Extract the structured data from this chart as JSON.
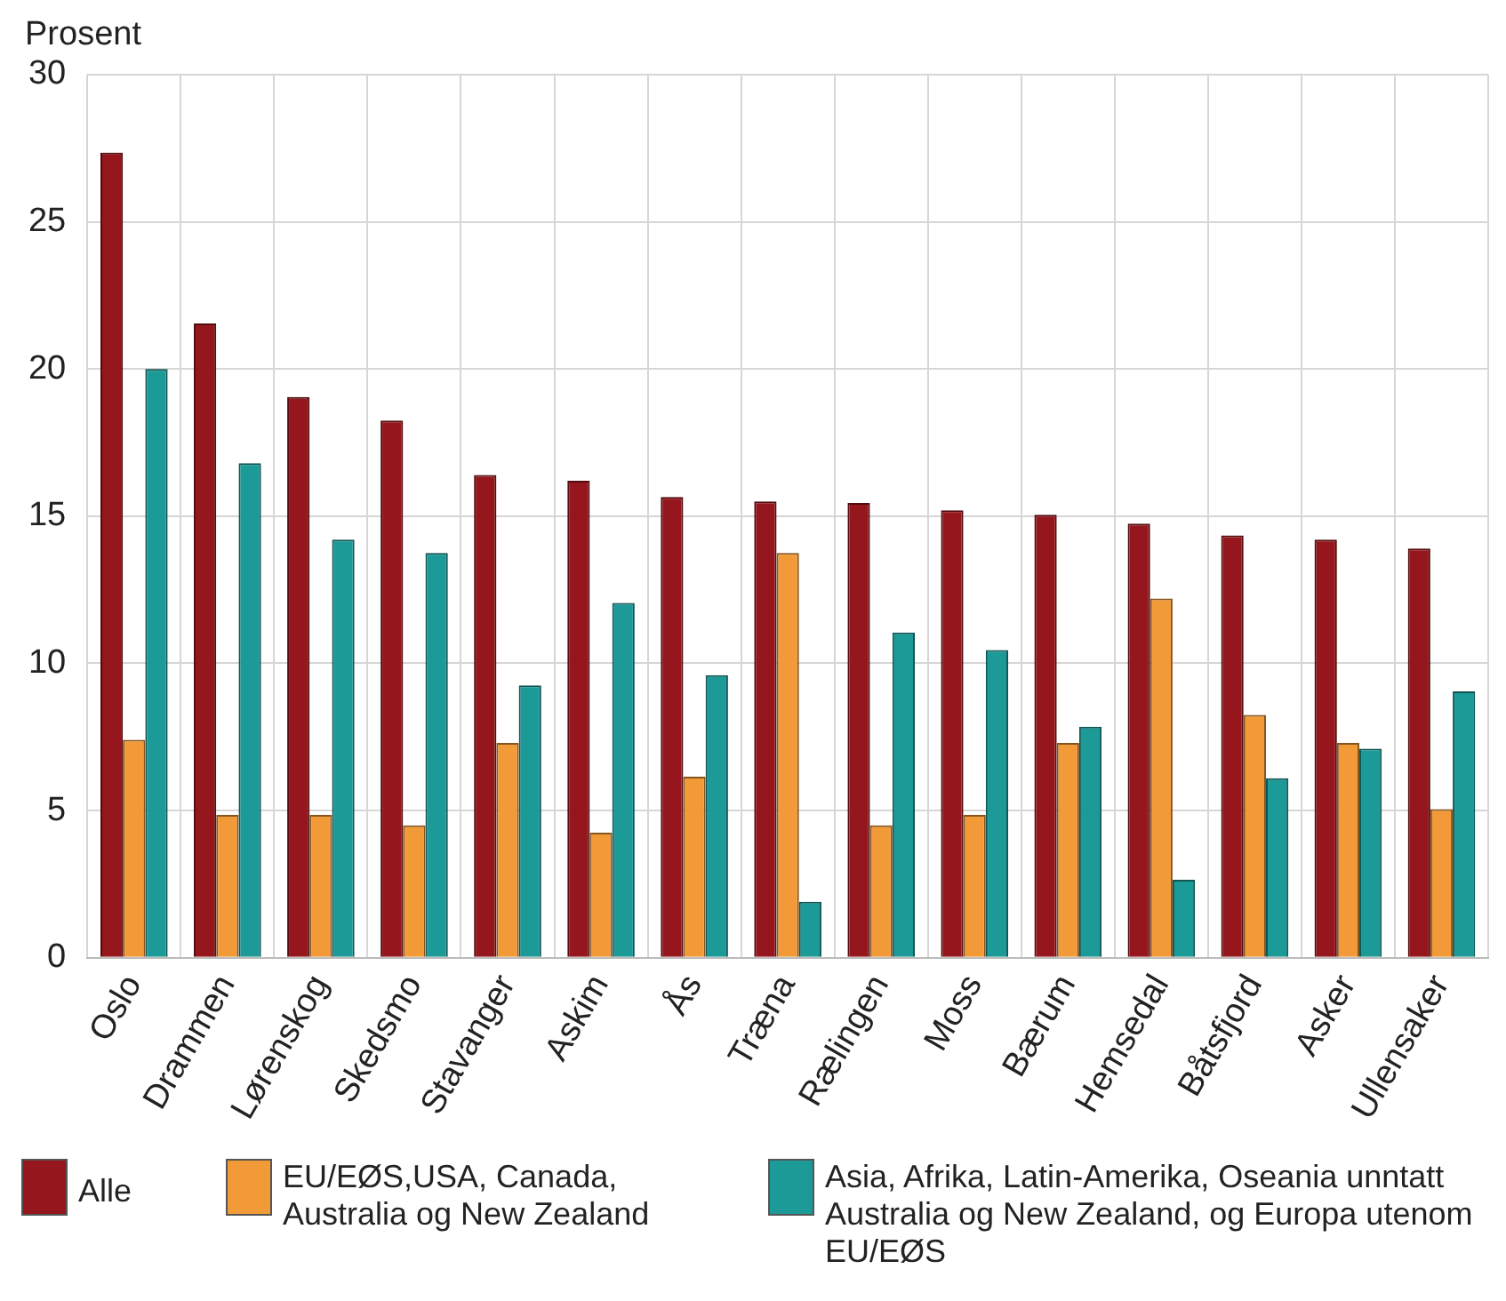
{
  "chart_data": {
    "type": "bar",
    "ylabel": "Prosent",
    "categories": [
      "Oslo",
      "Drammen",
      "Lørenskog",
      "Skedsmo",
      "Stavanger",
      "Askim",
      "Ås",
      "Træna",
      "Rælingen",
      "Moss",
      "Bærum",
      "Hemsedal",
      "Båtsfjord",
      "Asker",
      "Ullensaker"
    ],
    "series": [
      {
        "name": "Alle",
        "color": "#95161c",
        "values": [
          27.35,
          21.55,
          19.05,
          18.25,
          16.4,
          16.2,
          15.65,
          15.5,
          15.45,
          15.2,
          15.05,
          14.75,
          14.35,
          14.2,
          13.9
        ]
      },
      {
        "name": "EU/EØS,USA, Canada, Australia og New Zealand",
        "color": "#f39a38",
        "values": [
          7.4,
          4.85,
          4.85,
          4.5,
          7.3,
          4.25,
          6.15,
          13.75,
          4.5,
          4.85,
          7.3,
          12.2,
          8.25,
          7.3,
          5.05
        ]
      },
      {
        "name": "Asia, Afrika, Latin-Amerika, Oseania unntatt Australia og New Zealand, og Europa utenom EU/EØS",
        "color": "#1b9a97",
        "values": [
          20.0,
          16.8,
          14.2,
          13.75,
          9.25,
          12.05,
          9.6,
          1.9,
          11.05,
          10.45,
          7.85,
          2.65,
          6.1,
          7.1,
          9.05
        ]
      }
    ],
    "ylim": [
      0,
      30
    ],
    "yticks": [
      0,
      5,
      10,
      15,
      20,
      25,
      30
    ],
    "grid": true,
    "legend": "bottom"
  }
}
